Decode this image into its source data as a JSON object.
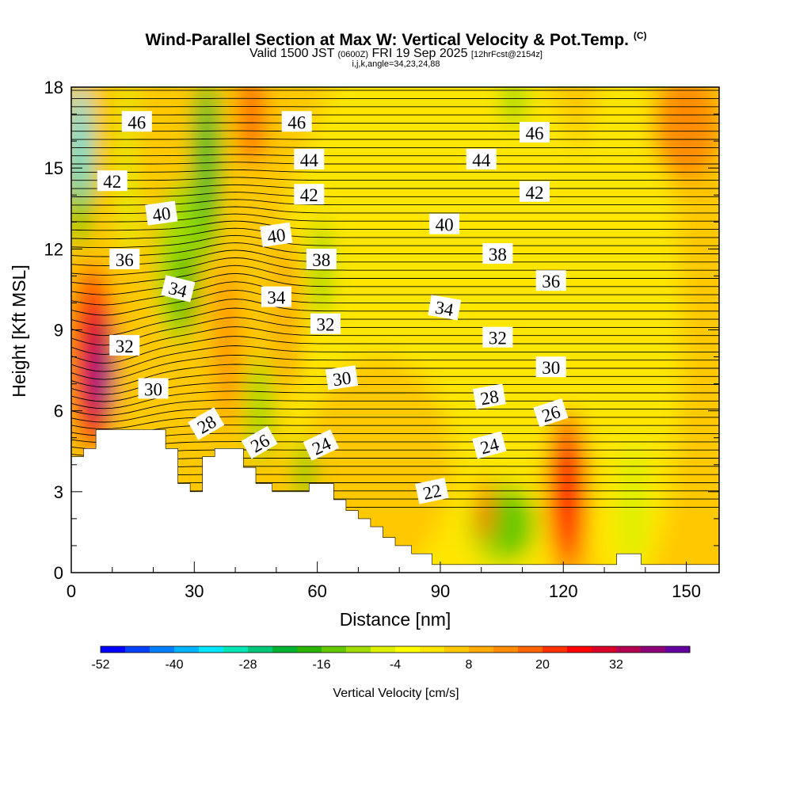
{
  "chart_data": {
    "type": "heatmap",
    "title": "Wind-Parallel Section at Max W: Vertical Velocity & Pot.Temp.",
    "title_mark": "(C)",
    "subtitle": {
      "valid": "Valid 1500 JST",
      "utc": "(0600Z)",
      "date": "FRI 19 Sep 2025",
      "fcst": "[12hrFcst@2154z]"
    },
    "indices": "i,j,k,angle=34,23,24,88",
    "xlabel": "Distance [nm]",
    "ylabel": "Height [Kft MSL]",
    "xlim": [
      0,
      158
    ],
    "ylim": [
      0,
      18
    ],
    "x_ticks": [
      "0",
      "30",
      "60",
      "90",
      "120",
      "150"
    ],
    "x_tick_values": [
      0,
      30,
      60,
      90,
      120,
      150
    ],
    "y_ticks": [
      "0",
      "3",
      "6",
      "9",
      "12",
      "15",
      "18"
    ],
    "y_tick_values": [
      0,
      3,
      6,
      9,
      12,
      15,
      18
    ],
    "colorbar": {
      "label": "Vertical Velocity [cm/s]",
      "tick_labels": [
        "-52",
        "-40",
        "-28",
        "-16",
        "-4",
        "8",
        "20",
        "32"
      ],
      "tick_values": [
        -52,
        -40,
        -28,
        -16,
        -4,
        8,
        20,
        32
      ],
      "min": -52,
      "max": 44,
      "step": 4,
      "colors": [
        "#0000ff",
        "#0040ff",
        "#0080ff",
        "#00b4ff",
        "#00e6ff",
        "#00e6b4",
        "#00c878",
        "#00b432",
        "#28b400",
        "#64c800",
        "#a0dc00",
        "#dcf000",
        "#ffff00",
        "#ffe600",
        "#ffc800",
        "#ffaa00",
        "#ff8c00",
        "#ff6400",
        "#ff3200",
        "#ff0000",
        "#dc0028",
        "#b40050",
        "#8c0078",
        "#6400a0"
      ]
    },
    "contour_field": "Potential temperature (contour labels)",
    "contour_labels": [
      {
        "text": "46",
        "x": 16,
        "y": 16.7,
        "angle": 0
      },
      {
        "text": "46",
        "x": 55,
        "y": 16.7,
        "angle": 0
      },
      {
        "text": "46",
        "x": 113,
        "y": 16.3,
        "angle": 0
      },
      {
        "text": "44",
        "x": 58,
        "y": 15.3,
        "angle": 0
      },
      {
        "text": "44",
        "x": 100,
        "y": 15.3,
        "angle": 0
      },
      {
        "text": "42",
        "x": 10,
        "y": 14.5,
        "angle": 0
      },
      {
        "text": "42",
        "x": 58,
        "y": 14.0,
        "angle": 0
      },
      {
        "text": "42",
        "x": 113,
        "y": 14.1,
        "angle": 0
      },
      {
        "text": "40",
        "x": 22,
        "y": 13.3,
        "angle": -8
      },
      {
        "text": "40",
        "x": 50,
        "y": 12.5,
        "angle": -8
      },
      {
        "text": "40",
        "x": 91,
        "y": 12.9,
        "angle": 0
      },
      {
        "text": "38",
        "x": 61,
        "y": 11.6,
        "angle": 0
      },
      {
        "text": "38",
        "x": 104,
        "y": 11.8,
        "angle": 0
      },
      {
        "text": "36",
        "x": 13,
        "y": 11.6,
        "angle": 0
      },
      {
        "text": "36",
        "x": 117,
        "y": 10.8,
        "angle": 0
      },
      {
        "text": "34",
        "x": 26,
        "y": 10.5,
        "angle": 14
      },
      {
        "text": "34",
        "x": 50,
        "y": 10.2,
        "angle": 0
      },
      {
        "text": "34",
        "x": 91,
        "y": 9.8,
        "angle": 10
      },
      {
        "text": "32",
        "x": 13,
        "y": 8.4,
        "angle": 0
      },
      {
        "text": "32",
        "x": 62,
        "y": 9.2,
        "angle": 0
      },
      {
        "text": "32",
        "x": 104,
        "y": 8.7,
        "angle": 0
      },
      {
        "text": "30",
        "x": 20,
        "y": 6.8,
        "angle": 0
      },
      {
        "text": "30",
        "x": 66,
        "y": 7.2,
        "angle": -8
      },
      {
        "text": "30",
        "x": 117,
        "y": 7.6,
        "angle": 0
      },
      {
        "text": "28",
        "x": 33,
        "y": 5.5,
        "angle": -30
      },
      {
        "text": "28",
        "x": 102,
        "y": 6.5,
        "angle": -10
      },
      {
        "text": "26",
        "x": 46,
        "y": 4.8,
        "angle": -30
      },
      {
        "text": "26",
        "x": 117,
        "y": 5.9,
        "angle": -18
      },
      {
        "text": "24",
        "x": 61,
        "y": 4.7,
        "angle": -25
      },
      {
        "text": "24",
        "x": 102,
        "y": 4.7,
        "angle": -15
      },
      {
        "text": "22",
        "x": 88,
        "y": 3.0,
        "angle": -12
      }
    ],
    "terrain_height_kft": [
      [
        0,
        4.3
      ],
      [
        3,
        4.3
      ],
      [
        3,
        4.6
      ],
      [
        6,
        4.6
      ],
      [
        6,
        5.3
      ],
      [
        23,
        5.3
      ],
      [
        23,
        4.6
      ],
      [
        26,
        4.6
      ],
      [
        26,
        3.3
      ],
      [
        29,
        3.3
      ],
      [
        29,
        3.0
      ],
      [
        32,
        3.0
      ],
      [
        32,
        4.3
      ],
      [
        35,
        4.3
      ],
      [
        35,
        4.6
      ],
      [
        42,
        4.6
      ],
      [
        42,
        3.9
      ],
      [
        45,
        3.9
      ],
      [
        45,
        3.3
      ],
      [
        49,
        3.3
      ],
      [
        49,
        3.0
      ],
      [
        58,
        3.0
      ],
      [
        58,
        3.3
      ],
      [
        64,
        3.3
      ],
      [
        64,
        2.7
      ],
      [
        67,
        2.7
      ],
      [
        67,
        2.3
      ],
      [
        70,
        2.3
      ],
      [
        70,
        2.0
      ],
      [
        73,
        2.0
      ],
      [
        73,
        1.7
      ],
      [
        76,
        1.7
      ],
      [
        76,
        1.3
      ],
      [
        79,
        1.3
      ],
      [
        79,
        1.0
      ],
      [
        83,
        1.0
      ],
      [
        83,
        0.7
      ],
      [
        88,
        0.7
      ],
      [
        88,
        0.3
      ],
      [
        133,
        0.3
      ],
      [
        133,
        0.7
      ],
      [
        139,
        0.7
      ],
      [
        139,
        0.3
      ],
      [
        158,
        0.3
      ],
      [
        158,
        0
      ],
      [
        0,
        0
      ]
    ]
  }
}
